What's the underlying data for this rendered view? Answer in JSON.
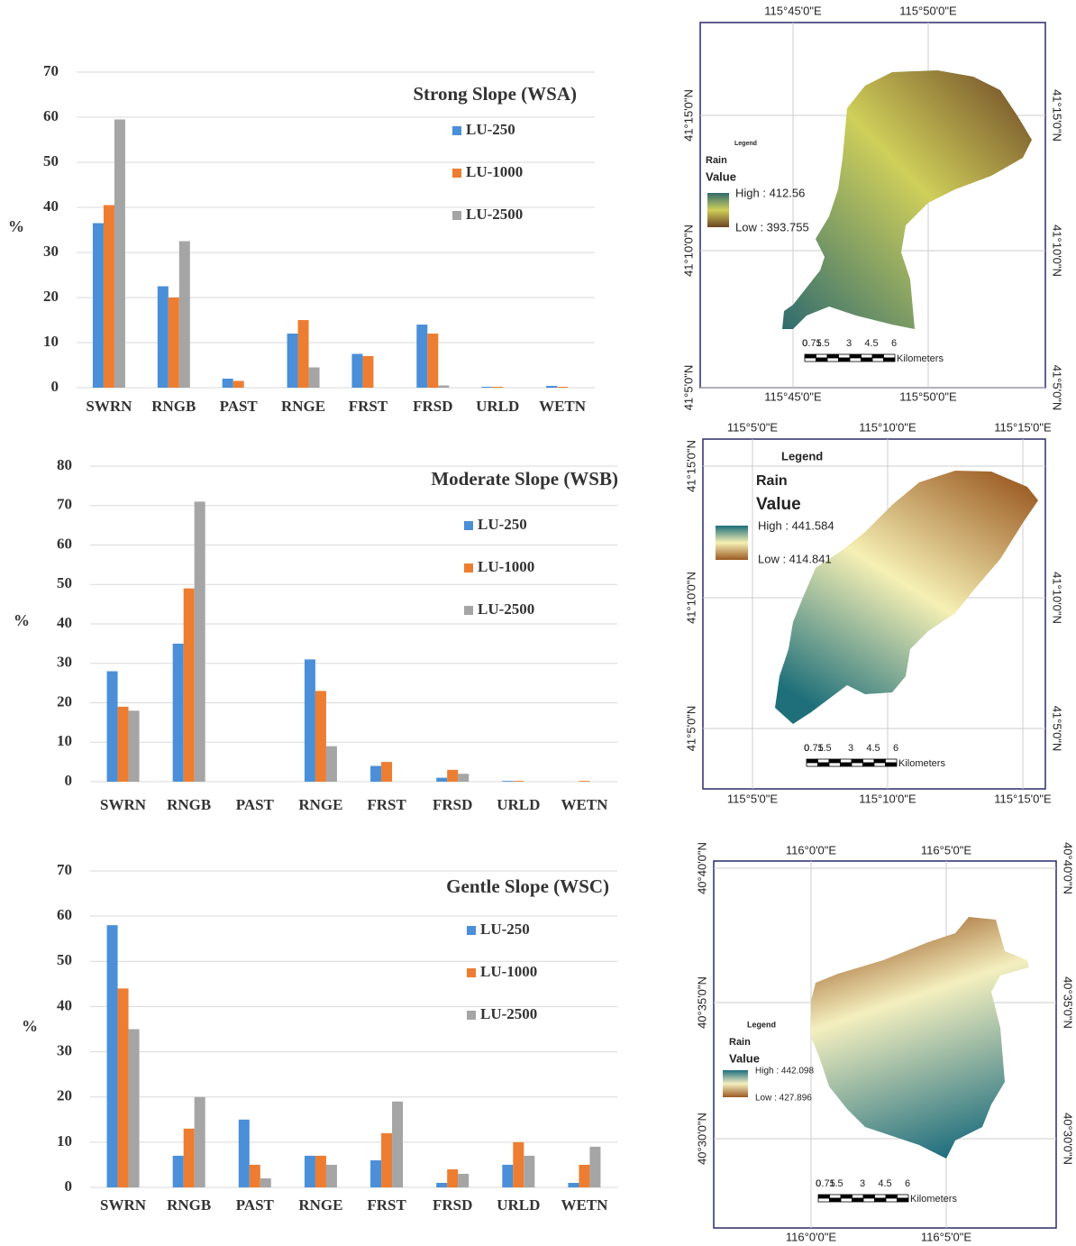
{
  "chart_data": [
    {
      "type": "bar",
      "title": "Strong Slope (WSA)",
      "y_label": "%",
      "categories": [
        "SWRN",
        "RNGB",
        "PAST",
        "RNGE",
        "FRST",
        "FRSD",
        "URLD",
        "WETN"
      ],
      "series": [
        {
          "name": "LU-250",
          "color": "#4a8fd8",
          "values": [
            36.5,
            22.5,
            2,
            12,
            7.5,
            14,
            0.2,
            0.4
          ]
        },
        {
          "name": "LU-1000",
          "color": "#ed7d31",
          "values": [
            40.5,
            20,
            1.5,
            15,
            7,
            12,
            0.2,
            0.2
          ]
        },
        {
          "name": "LU-2500",
          "color": "#a5a5a5",
          "values": [
            59.5,
            32.5,
            0,
            4.5,
            0,
            0.5,
            0,
            0
          ]
        }
      ],
      "ylim": [
        0,
        70
      ],
      "yticks": [
        0,
        10,
        20,
        30,
        40,
        50,
        60,
        70
      ],
      "grid": true
    },
    {
      "type": "bar",
      "title": "Moderate Slope (WSB)",
      "y_label": "%",
      "categories": [
        "SWRN",
        "RNGB",
        "PAST",
        "RNGE",
        "FRST",
        "FRSD",
        "URLD",
        "WETN"
      ],
      "series": [
        {
          "name": "LU-250",
          "color": "#4a8fd8",
          "values": [
            28,
            35,
            0,
            31,
            4,
            1,
            0.2,
            0
          ]
        },
        {
          "name": "LU-1000",
          "color": "#ed7d31",
          "values": [
            19,
            49,
            0,
            23,
            5,
            3,
            0.2,
            0.2
          ]
        },
        {
          "name": "LU-2500",
          "color": "#a5a5a5",
          "values": [
            18,
            71,
            0,
            9,
            0,
            2,
            0,
            0
          ]
        }
      ],
      "ylim": [
        0,
        80
      ],
      "yticks": [
        0,
        10,
        20,
        30,
        40,
        50,
        60,
        70,
        80
      ],
      "grid": true
    },
    {
      "type": "bar",
      "title": "Gentle Slope (WSC)",
      "y_label": "%",
      "categories": [
        "SWRN",
        "RNGB",
        "PAST",
        "RNGE",
        "FRST",
        "FRSD",
        "URLD",
        "WETN"
      ],
      "series": [
        {
          "name": "LU-250",
          "color": "#4a8fd8",
          "values": [
            58,
            7,
            15,
            7,
            6,
            1,
            5,
            1
          ]
        },
        {
          "name": "LU-1000",
          "color": "#ed7d31",
          "values": [
            44,
            13,
            5,
            7,
            12,
            4,
            10,
            5
          ]
        },
        {
          "name": "LU-2500",
          "color": "#a5a5a5",
          "values": [
            35,
            20,
            2,
            5,
            19,
            3,
            7,
            9
          ]
        }
      ],
      "ylim": [
        0,
        70
      ],
      "yticks": [
        0,
        10,
        20,
        30,
        40,
        50,
        60,
        70
      ],
      "grid": true
    }
  ],
  "maps": [
    {
      "top_labels": [
        "115°45'0\"E",
        "115°50'0\"E"
      ],
      "bottom_labels": [
        "115°45'0\"E",
        "115°50'0\"E"
      ],
      "left_labels": [
        "41°15'0\"N",
        "41°10'0\"N",
        "41°5'0\"N"
      ],
      "right_labels": [
        "41°15'0\"N",
        "41°10'0\"N",
        "41°5'0\"N"
      ],
      "legend_title": "Legend",
      "legend_field": "Rain",
      "legend_value": "Value",
      "high": "High : 412.56",
      "low": "Low : 393.755",
      "scale_labels": [
        "0",
        "0.75",
        "1.5",
        "3",
        "4.5",
        "6"
      ],
      "scale_unit": "Kilometers"
    },
    {
      "top_labels": [
        "115°5'0\"E",
        "115°10'0\"E",
        "115°15'0\"E"
      ],
      "bottom_labels": [
        "115°5'0\"E",
        "115°10'0\"E",
        "115°15'0\"E"
      ],
      "left_labels": [
        "41°15'0\"N",
        "41°10'0\"N",
        "41°5'0\"N"
      ],
      "right_labels": [
        "41°10'0\"N",
        "41°5'0\"N"
      ],
      "legend_title": "Legend",
      "legend_field": "Rain",
      "legend_value": "Value",
      "high": "High : 441.584",
      "low": "Low : 414.841",
      "scale_labels": [
        "0",
        "0.75",
        "1.5",
        "3",
        "4.5",
        "6"
      ],
      "scale_unit": "Kilometers"
    },
    {
      "top_labels": [
        "116°0'0\"E",
        "116°5'0\"E"
      ],
      "bottom_labels": [
        "116°0'0\"E",
        "116°5'0\"E"
      ],
      "left_labels": [
        "40°40'0\"N",
        "40°35'0\"N",
        "40°30'0\"N"
      ],
      "right_labels": [
        "40°40'0\"N",
        "40°35'0\"N",
        "40°30'0\"N"
      ],
      "legend_title": "Legend",
      "legend_field": "Rain",
      "legend_value": "Value",
      "high": "High : 442.098",
      "low": "Low : 427.896",
      "scale_labels": [
        "0",
        "0.75",
        "1.5",
        "3",
        "4.5",
        "6"
      ],
      "scale_unit": "Kilometers"
    }
  ]
}
